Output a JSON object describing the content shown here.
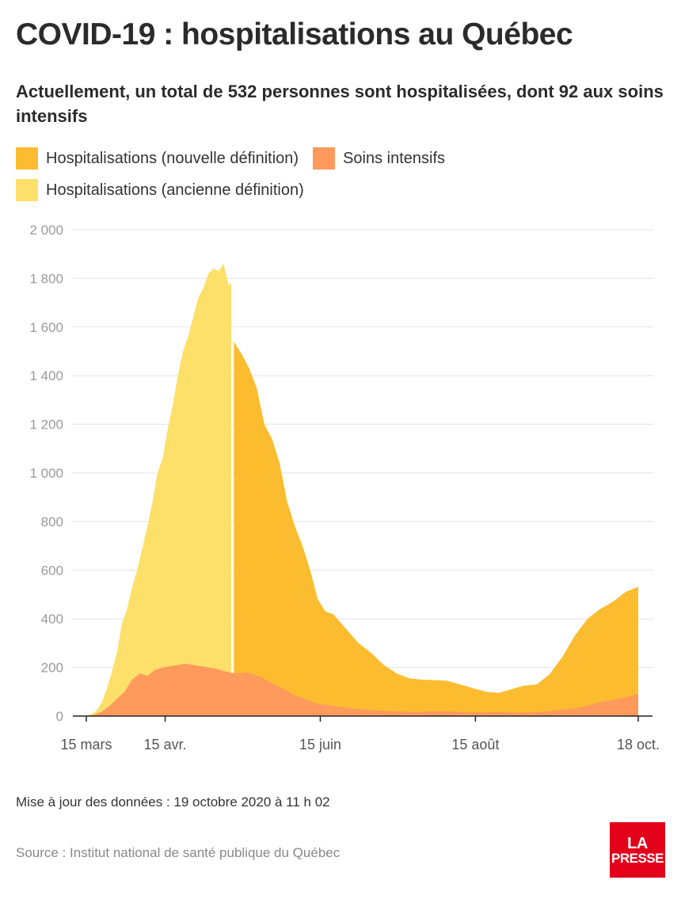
{
  "header": {
    "title": "COVID-19 : hospitalisations au Québec",
    "subtitle": "Actuellement, un total de 532 personnes sont hospitalisées, dont 92 aux soins intensifs"
  },
  "legend": [
    {
      "label": "Hospitalisations (nouvelle définition)",
      "color": "#fbbd2f"
    },
    {
      "label": "Soins intensifs",
      "color": "#fd9a5c"
    },
    {
      "label": "Hospitalisations (ancienne définition)",
      "color": "#fde06a"
    }
  ],
  "footer": {
    "update": "Mise à jour des données : 19 octobre 2020 à 11 h 02",
    "source": "Source : Institut national de santé publique du Québec"
  },
  "logo": {
    "top": "LA",
    "bottom": "PRESSE"
  },
  "chart_data": {
    "type": "area",
    "ylim": [
      0,
      2000
    ],
    "y_ticks": [
      0,
      200,
      400,
      600,
      800,
      1000,
      1200,
      1400,
      1600,
      1800,
      2000
    ],
    "y_tick_labels": [
      "0",
      "200",
      "400",
      "600",
      "800",
      "1 000",
      "1 200",
      "1 400",
      "1 600",
      "1 800",
      "2 000"
    ],
    "x_ticks": [
      {
        "date": "2020-03-15",
        "label": "15 mars"
      },
      {
        "date": "2020-04-15",
        "label": "15 avr."
      },
      {
        "date": "2020-06-15",
        "label": "15 juin"
      },
      {
        "date": "2020-08-15",
        "label": "15 août"
      },
      {
        "date": "2020-10-18",
        "label": "18 oct."
      }
    ],
    "xlim": [
      "2020-03-15",
      "2020-10-18"
    ],
    "grid": true,
    "series": [
      {
        "name": "Hospitalisations (ancienne définition)",
        "color": "#fde06a",
        "x": [
          "2020-03-15",
          "2020-03-17",
          "2020-03-19",
          "2020-03-21",
          "2020-03-23",
          "2020-03-25",
          "2020-03-27",
          "2020-03-29",
          "2020-03-31",
          "2020-04-02",
          "2020-04-04",
          "2020-04-06",
          "2020-04-08",
          "2020-04-10",
          "2020-04-12",
          "2020-04-14",
          "2020-04-16",
          "2020-04-18",
          "2020-04-20",
          "2020-04-22",
          "2020-04-24",
          "2020-04-26",
          "2020-04-28",
          "2020-04-30",
          "2020-05-02",
          "2020-05-04",
          "2020-05-06",
          "2020-05-08",
          "2020-05-10",
          "2020-05-11"
        ],
        "values": [
          2,
          8,
          22,
          55,
          110,
          180,
          260,
          380,
          440,
          530,
          600,
          690,
          780,
          880,
          1000,
          1060,
          1180,
          1280,
          1400,
          1500,
          1560,
          1640,
          1720,
          1760,
          1820,
          1840,
          1830,
          1860,
          1770,
          1780
        ]
      },
      {
        "name": "Hospitalisations (nouvelle définition)",
        "color": "#fbbd2f",
        "x": [
          "2020-05-12",
          "2020-05-15",
          "2020-05-18",
          "2020-05-21",
          "2020-05-24",
          "2020-05-27",
          "2020-05-30",
          "2020-06-02",
          "2020-06-05",
          "2020-06-08",
          "2020-06-11",
          "2020-06-14",
          "2020-06-17",
          "2020-06-20",
          "2020-06-25",
          "2020-06-30",
          "2020-07-05",
          "2020-07-10",
          "2020-07-15",
          "2020-07-20",
          "2020-07-25",
          "2020-07-30",
          "2020-08-04",
          "2020-08-09",
          "2020-08-14",
          "2020-08-19",
          "2020-08-24",
          "2020-08-29",
          "2020-09-03",
          "2020-09-08",
          "2020-09-13",
          "2020-09-18",
          "2020-09-23",
          "2020-09-28",
          "2020-10-03",
          "2020-10-08",
          "2020-10-13",
          "2020-10-18"
        ],
        "values": [
          1540,
          1490,
          1430,
          1350,
          1200,
          1140,
          1040,
          880,
          780,
          700,
          600,
          480,
          430,
          420,
          360,
          300,
          260,
          210,
          175,
          155,
          150,
          148,
          145,
          130,
          115,
          100,
          95,
          110,
          125,
          130,
          170,
          240,
          330,
          400,
          440,
          470,
          510,
          532
        ]
      },
      {
        "name": "Soins intensifs",
        "color": "#fd9a5c",
        "x": [
          "2020-03-15",
          "2020-03-18",
          "2020-03-21",
          "2020-03-24",
          "2020-03-27",
          "2020-03-30",
          "2020-04-02",
          "2020-04-05",
          "2020-04-08",
          "2020-04-11",
          "2020-04-14",
          "2020-04-17",
          "2020-04-20",
          "2020-04-23",
          "2020-04-26",
          "2020-04-29",
          "2020-05-02",
          "2020-05-05",
          "2020-05-08",
          "2020-05-11",
          "2020-05-14",
          "2020-05-17",
          "2020-05-20",
          "2020-05-23",
          "2020-05-26",
          "2020-05-29",
          "2020-06-01",
          "2020-06-04",
          "2020-06-09",
          "2020-06-14",
          "2020-06-19",
          "2020-06-24",
          "2020-06-29",
          "2020-07-04",
          "2020-07-09",
          "2020-07-14",
          "2020-07-19",
          "2020-07-24",
          "2020-07-29",
          "2020-08-03",
          "2020-08-08",
          "2020-08-13",
          "2020-08-18",
          "2020-08-23",
          "2020-08-28",
          "2020-09-02",
          "2020-09-07",
          "2020-09-12",
          "2020-09-17",
          "2020-09-22",
          "2020-09-27",
          "2020-10-02",
          "2020-10-07",
          "2020-10-12",
          "2020-10-18"
        ],
        "values": [
          1,
          5,
          18,
          40,
          70,
          100,
          150,
          175,
          165,
          190,
          200,
          205,
          210,
          215,
          210,
          205,
          200,
          195,
          185,
          178,
          175,
          180,
          170,
          160,
          140,
          125,
          110,
          90,
          70,
          50,
          45,
          35,
          30,
          25,
          22,
          20,
          18,
          17,
          20,
          20,
          18,
          15,
          15,
          17,
          15,
          15,
          16,
          20,
          25,
          30,
          40,
          55,
          65,
          75,
          92
        ]
      }
    ]
  }
}
